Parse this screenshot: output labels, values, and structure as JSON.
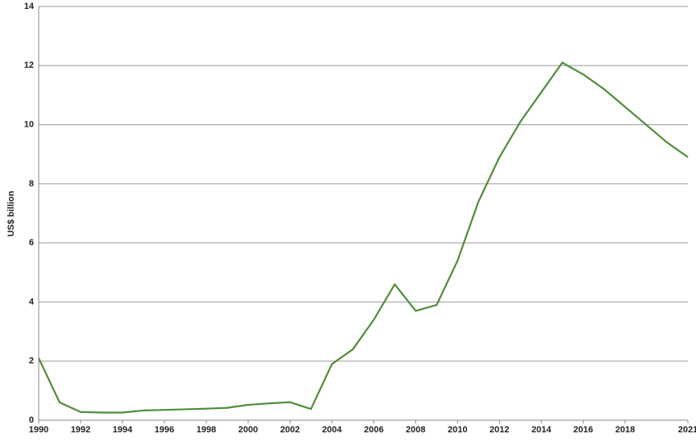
{
  "chart_data": {
    "type": "line",
    "y_label": "US$ billion",
    "x": [
      1990,
      1991,
      1992,
      1993,
      1994,
      1995,
      1996,
      1997,
      1998,
      1999,
      2000,
      2001,
      2002,
      2003,
      2004,
      2005,
      2006,
      2007,
      2008,
      2009,
      2010,
      2011,
      2012,
      2013,
      2014,
      2015,
      2016,
      2017,
      2018,
      2019,
      2020,
      2021
    ],
    "series": [
      {
        "color": "#4e8d3a",
        "values": [
          2.1,
          0.6,
          0.28,
          0.26,
          0.26,
          0.33,
          0.35,
          0.37,
          0.39,
          0.42,
          0.52,
          0.57,
          0.61,
          0.38,
          1.9,
          2.4,
          3.4,
          4.6,
          3.7,
          3.9,
          5.4,
          7.4,
          8.9,
          10.1,
          11.1,
          12.1,
          11.7,
          11.2,
          10.6,
          10.0,
          9.4,
          8.9
        ]
      }
    ],
    "xlim": [
      1990,
      2021
    ],
    "xticks": [
      1990,
      1992,
      1994,
      1996,
      1998,
      2000,
      2002,
      2004,
      2006,
      2008,
      2010,
      2012,
      2014,
      2016,
      2018,
      2021
    ],
    "ylim": [
      0,
      14
    ],
    "yticks": [
      0,
      2,
      4,
      6,
      8,
      10,
      12,
      14
    ],
    "grid": true
  }
}
